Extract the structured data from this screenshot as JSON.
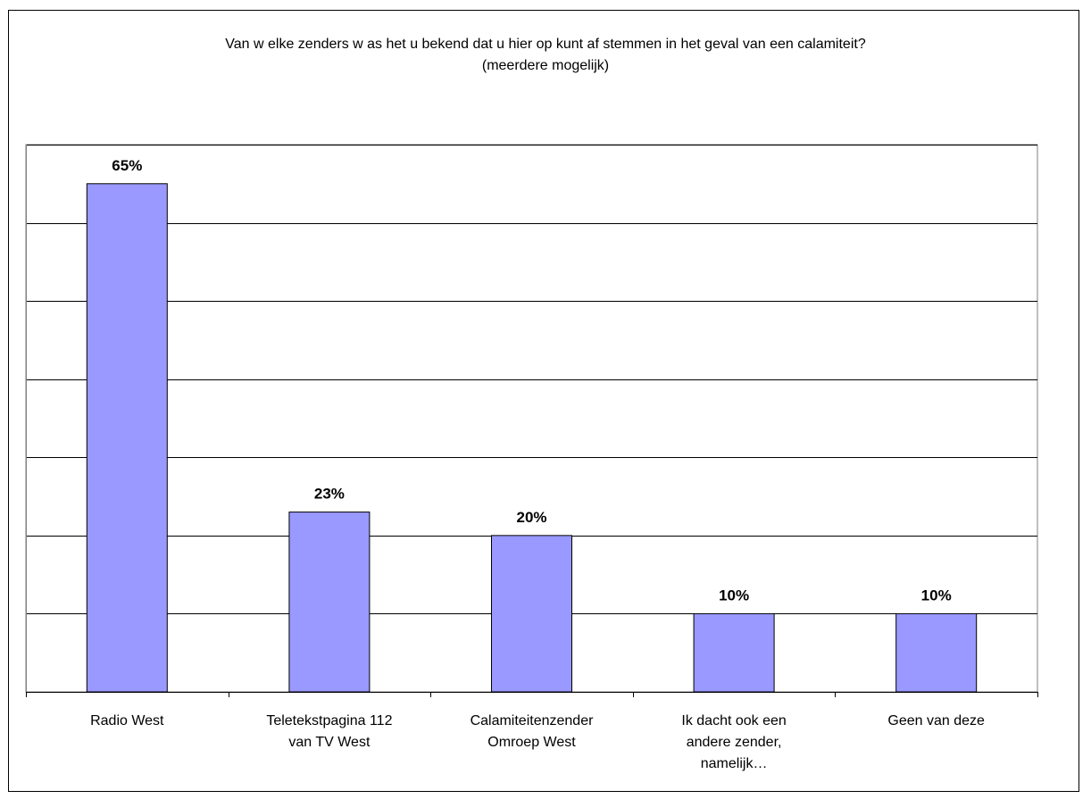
{
  "chart_data": {
    "type": "bar",
    "title": "Van w elke zenders w as het u bekend dat u hier op kunt af stemmen in het geval van een calamiteit?",
    "subtitle": "(meerdere mogelijk)",
    "categories": [
      [
        "Radio West"
      ],
      [
        "Teletekstpagina 112",
        "van TV West"
      ],
      [
        "Calamiteitenzender",
        "Omroep West"
      ],
      [
        "Ik dacht ook een",
        "andere zender,",
        "namelijk…"
      ],
      [
        "Geen van deze"
      ]
    ],
    "values": [
      65,
      23,
      20,
      10,
      10
    ],
    "data_labels": [
      "65%",
      "23%",
      "20%",
      "10%",
      "10%"
    ],
    "ylim": [
      0,
      70
    ],
    "y_grid_step": 10,
    "grid": true,
    "y_ticks_shown": false,
    "legend": "none",
    "bar_color": "#9999ff",
    "bar_edge_color": "#000000",
    "plot_bg": "#ffffff"
  }
}
